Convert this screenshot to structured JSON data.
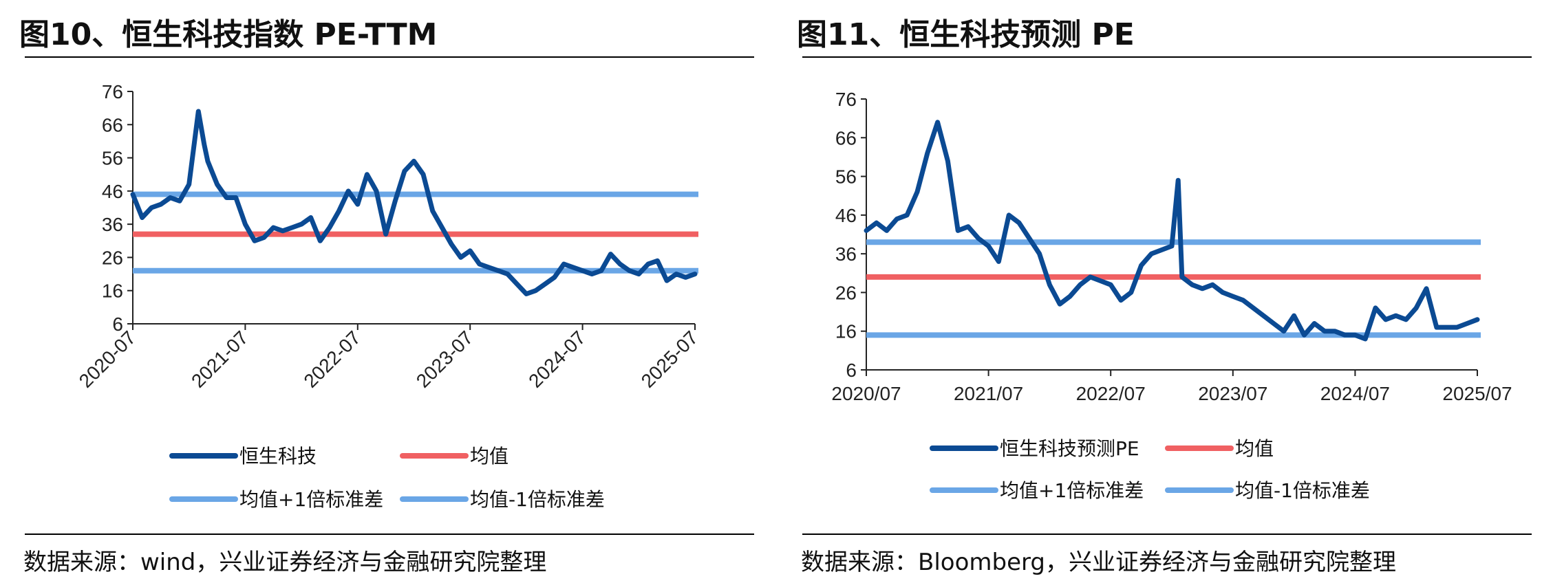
{
  "figures": [
    {
      "title": "图10、恒生科技指数 PE-TTM",
      "source": "数据来源：wind，兴业证券经济与金融研究院整理"
    },
    {
      "title": "图11、恒生科技预测 PE",
      "source": "数据来源：Bloomberg，兴业证券经济与金融研究院整理"
    }
  ],
  "colors": {
    "main": "#0b4a93",
    "mean": "#f06062",
    "band": "#6aa6e6",
    "axis": "#222222"
  },
  "chart_data": [
    {
      "type": "line",
      "title": "图10、恒生科技指数 PE-TTM",
      "xlabel": "",
      "ylabel": "",
      "ylim": [
        6,
        76
      ],
      "yticks": [
        6,
        16,
        26,
        36,
        46,
        56,
        66,
        76
      ],
      "x_tick_labels": [
        "2020-07",
        "2021-07",
        "2022-07",
        "2023-07",
        "2024-07",
        "2025-07"
      ],
      "x_tick_rotation": "rotated 45°",
      "grid": false,
      "legend_position": "bottom",
      "series": [
        {
          "name": "恒生科技",
          "role": "main",
          "points": [
            [
              "2020-07",
              45
            ],
            [
              "2020-08",
              38
            ],
            [
              "2020-09",
              41
            ],
            [
              "2020-10",
              42
            ],
            [
              "2020-11",
              44
            ],
            [
              "2020-12",
              43
            ],
            [
              "2021-01",
              48
            ],
            [
              "2021-02",
              70
            ],
            [
              "2021-02-20",
              60
            ],
            [
              "2021-03",
              55
            ],
            [
              "2021-04",
              48
            ],
            [
              "2021-05",
              44
            ],
            [
              "2021-06",
              44
            ],
            [
              "2021-07",
              36
            ],
            [
              "2021-08",
              31
            ],
            [
              "2021-09",
              32
            ],
            [
              "2021-10",
              35
            ],
            [
              "2021-11",
              34
            ],
            [
              "2021-12",
              35
            ],
            [
              "2022-01",
              36
            ],
            [
              "2022-02",
              38
            ],
            [
              "2022-03",
              31
            ],
            [
              "2022-04",
              35
            ],
            [
              "2022-05",
              40
            ],
            [
              "2022-06",
              46
            ],
            [
              "2022-07",
              42
            ],
            [
              "2022-08",
              51
            ],
            [
              "2022-09",
              46
            ],
            [
              "2022-10",
              33
            ],
            [
              "2022-11",
              43
            ],
            [
              "2022-12",
              52
            ],
            [
              "2023-01",
              55
            ],
            [
              "2023-02",
              51
            ],
            [
              "2023-03",
              40
            ],
            [
              "2023-04",
              35
            ],
            [
              "2023-05",
              30
            ],
            [
              "2023-06",
              26
            ],
            [
              "2023-07",
              28
            ],
            [
              "2023-08",
              24
            ],
            [
              "2023-09",
              23
            ],
            [
              "2023-10",
              22
            ],
            [
              "2023-11",
              21
            ],
            [
              "2023-12",
              18
            ],
            [
              "2024-01",
              15
            ],
            [
              "2024-02",
              16
            ],
            [
              "2024-03",
              18
            ],
            [
              "2024-04",
              20
            ],
            [
              "2024-05",
              24
            ],
            [
              "2024-06",
              23
            ],
            [
              "2024-07",
              22
            ],
            [
              "2024-08",
              21
            ],
            [
              "2024-09",
              22
            ],
            [
              "2024-10",
              27
            ],
            [
              "2024-11",
              24
            ],
            [
              "2024-12",
              22
            ],
            [
              "2025-01",
              21
            ],
            [
              "2025-02",
              24
            ],
            [
              "2025-03",
              25
            ],
            [
              "2025-04",
              19
            ],
            [
              "2025-05",
              21
            ],
            [
              "2025-06",
              20
            ],
            [
              "2025-07",
              21
            ]
          ]
        },
        {
          "name": "均值",
          "role": "mean",
          "constant": 33
        },
        {
          "name": "均值+1倍标准差",
          "role": "upper",
          "constant": 45
        },
        {
          "name": "均值-1倍标准差",
          "role": "lower",
          "constant": 22
        }
      ]
    },
    {
      "type": "line",
      "title": "图11、恒生科技预测 PE",
      "xlabel": "",
      "ylabel": "",
      "ylim": [
        6,
        76
      ],
      "yticks": [
        6,
        16,
        26,
        36,
        46,
        56,
        66,
        76
      ],
      "x_tick_labels": [
        "2020/07",
        "2021/07",
        "2022/07",
        "2023/07",
        "2024/07",
        "2025/07"
      ],
      "x_tick_rotation": "horizontal",
      "grid": false,
      "legend_position": "bottom",
      "series": [
        {
          "name": "恒生科技预测PE",
          "role": "main",
          "points": [
            [
              "2020-07",
              42
            ],
            [
              "2020-08",
              44
            ],
            [
              "2020-09",
              42
            ],
            [
              "2020-10",
              45
            ],
            [
              "2020-11",
              46
            ],
            [
              "2020-12",
              52
            ],
            [
              "2021-01",
              62
            ],
            [
              "2021-02",
              70
            ],
            [
              "2021-03",
              60
            ],
            [
              "2021-04",
              42
            ],
            [
              "2021-05",
              43
            ],
            [
              "2021-06",
              40
            ],
            [
              "2021-07",
              38
            ],
            [
              "2021-08",
              34
            ],
            [
              "2021-09",
              46
            ],
            [
              "2021-10",
              44
            ],
            [
              "2021-11",
              40
            ],
            [
              "2021-12",
              36
            ],
            [
              "2022-01",
              28
            ],
            [
              "2022-02",
              23
            ],
            [
              "2022-03",
              25
            ],
            [
              "2022-04",
              28
            ],
            [
              "2022-05",
              30
            ],
            [
              "2022-06",
              29
            ],
            [
              "2022-07",
              28
            ],
            [
              "2022-08",
              24
            ],
            [
              "2022-09",
              26
            ],
            [
              "2022-10",
              33
            ],
            [
              "2022-11",
              36
            ],
            [
              "2022-12",
              37
            ],
            [
              "2023-01",
              38
            ],
            [
              "2023-01-20",
              55
            ],
            [
              "2023-02",
              30
            ],
            [
              "2023-03",
              28
            ],
            [
              "2023-04",
              27
            ],
            [
              "2023-05",
              28
            ],
            [
              "2023-06",
              26
            ],
            [
              "2023-07",
              25
            ],
            [
              "2023-08",
              24
            ],
            [
              "2023-09",
              22
            ],
            [
              "2023-10",
              20
            ],
            [
              "2023-11",
              18
            ],
            [
              "2023-12",
              16
            ],
            [
              "2024-01",
              20
            ],
            [
              "2024-02",
              15
            ],
            [
              "2024-03",
              18
            ],
            [
              "2024-04",
              16
            ],
            [
              "2024-05",
              16
            ],
            [
              "2024-06",
              15
            ],
            [
              "2024-07",
              15
            ],
            [
              "2024-08",
              14
            ],
            [
              "2024-09",
              22
            ],
            [
              "2024-10",
              19
            ],
            [
              "2024-11",
              20
            ],
            [
              "2024-12",
              19
            ],
            [
              "2025-01",
              22
            ],
            [
              "2025-02",
              27
            ],
            [
              "2025-03",
              17
            ],
            [
              "2025-04",
              17
            ],
            [
              "2025-05",
              17
            ],
            [
              "2025-06",
              18
            ],
            [
              "2025-07",
              19
            ]
          ]
        },
        {
          "name": "均值",
          "role": "mean",
          "constant": 30
        },
        {
          "name": "均值+1倍标准差",
          "role": "upper",
          "constant": 39
        },
        {
          "name": "均值-1倍标准差",
          "role": "lower",
          "constant": 15
        }
      ]
    }
  ]
}
